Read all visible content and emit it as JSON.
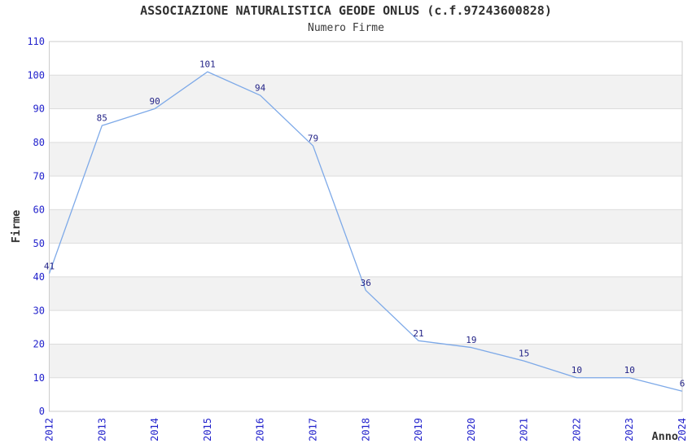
{
  "chart_data": {
    "type": "line",
    "title": "ASSOCIAZIONE NATURALISTICA GEODE ONLUS (c.f.97243600828)",
    "subtitle": "Numero Firme",
    "xlabel": "Anno",
    "ylabel": "Firme",
    "categories": [
      "2012",
      "2013",
      "2014",
      "2015",
      "2016",
      "2017",
      "2018",
      "2019",
      "2020",
      "2021",
      "2022",
      "2023",
      "2024"
    ],
    "values": [
      41,
      85,
      90,
      101,
      94,
      79,
      36,
      21,
      19,
      15,
      10,
      10,
      6
    ],
    "ylim": [
      0,
      110
    ],
    "y_tick_step": 10,
    "grid": true,
    "legend": "none",
    "band_pattern": "alternating-horizontal",
    "colors": {
      "line": "#7da9e8",
      "tick_label": "#2222cc",
      "data_label": "#232387",
      "band": "#f2f2f2",
      "gridline": "#dcdcdc",
      "plot_border": "#cccccc",
      "axis_title": "#333333",
      "title_text": "#303030"
    }
  }
}
